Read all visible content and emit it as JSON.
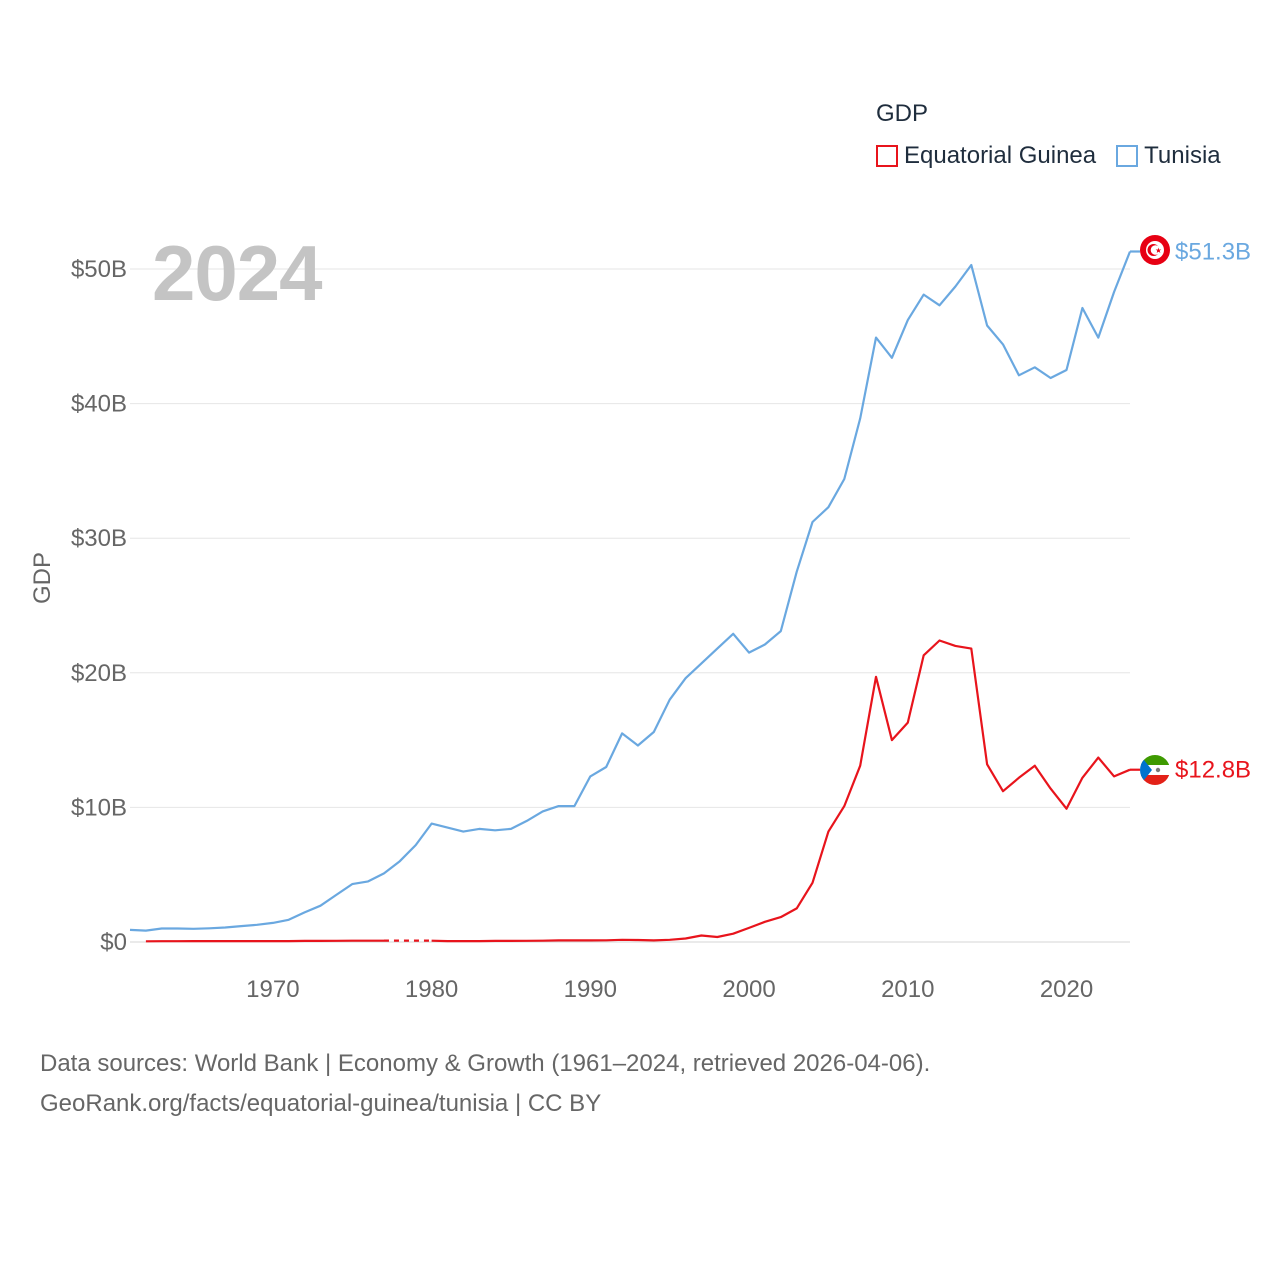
{
  "legend": {
    "title": "GDP",
    "items": [
      {
        "label": "Equatorial Guinea",
        "color": "#e8141c"
      },
      {
        "label": "Tunisia",
        "color": "#6aa8e0"
      }
    ]
  },
  "year_stamp": "2024",
  "source": {
    "line1": "Data sources: World Bank | Economy & Growth (1961–2024, retrieved 2026-04-06).",
    "line2": "GeoRank.org/facts/equatorial-guinea/tunisia | CC BY"
  },
  "chart_data": {
    "type": "line",
    "title": "",
    "xlabel": "",
    "ylabel": "GDP",
    "xlim": [
      1961,
      2024
    ],
    "ylim": [
      0,
      50
    ],
    "x_ticks": [
      {
        "value": 1970,
        "label": "1970"
      },
      {
        "value": 1980,
        "label": "1980"
      },
      {
        "value": 1990,
        "label": "1990"
      },
      {
        "value": 2000,
        "label": "2000"
      },
      {
        "value": 2010,
        "label": "2010"
      },
      {
        "value": 2020,
        "label": "2020"
      }
    ],
    "y_ticks": [
      {
        "value": 0,
        "label": "$0"
      },
      {
        "value": 10,
        "label": "$10B"
      },
      {
        "value": 20,
        "label": "$20B"
      },
      {
        "value": 30,
        "label": "$30B"
      },
      {
        "value": 40,
        "label": "$40B"
      },
      {
        "value": 50,
        "label": "$50B"
      }
    ],
    "series": [
      {
        "name": "Tunisia",
        "color": "#6aa8e0",
        "end_label": "$51.3B",
        "points": [
          [
            1961,
            0.9
          ],
          [
            1962,
            0.85
          ],
          [
            1963,
            1.0
          ],
          [
            1964,
            1.0
          ],
          [
            1965,
            0.98
          ],
          [
            1966,
            1.02
          ],
          [
            1967,
            1.08
          ],
          [
            1968,
            1.18
          ],
          [
            1969,
            1.28
          ],
          [
            1970,
            1.42
          ],
          [
            1971,
            1.65
          ],
          [
            1972,
            2.2
          ],
          [
            1973,
            2.7
          ],
          [
            1974,
            3.5
          ],
          [
            1975,
            4.3
          ],
          [
            1976,
            4.5
          ],
          [
            1977,
            5.1
          ],
          [
            1978,
            6.0
          ],
          [
            1979,
            7.2
          ],
          [
            1980,
            8.8
          ],
          [
            1981,
            8.5
          ],
          [
            1982,
            8.2
          ],
          [
            1983,
            8.4
          ],
          [
            1984,
            8.3
          ],
          [
            1985,
            8.4
          ],
          [
            1986,
            9.0
          ],
          [
            1987,
            9.7
          ],
          [
            1988,
            10.1
          ],
          [
            1989,
            10.1
          ],
          [
            1990,
            12.3
          ],
          [
            1991,
            13.0
          ],
          [
            1992,
            15.5
          ],
          [
            1993,
            14.6
          ],
          [
            1994,
            15.6
          ],
          [
            1995,
            18.0
          ],
          [
            1996,
            19.6
          ],
          [
            1997,
            20.7
          ],
          [
            1998,
            21.8
          ],
          [
            1999,
            22.9
          ],
          [
            2000,
            21.5
          ],
          [
            2001,
            22.1
          ],
          [
            2002,
            23.1
          ],
          [
            2003,
            27.5
          ],
          [
            2004,
            31.2
          ],
          [
            2005,
            32.3
          ],
          [
            2006,
            34.4
          ],
          [
            2007,
            38.9
          ],
          [
            2008,
            44.9
          ],
          [
            2009,
            43.4
          ],
          [
            2010,
            46.2
          ],
          [
            2011,
            48.1
          ],
          [
            2012,
            47.3
          ],
          [
            2013,
            48.7
          ],
          [
            2014,
            50.3
          ],
          [
            2015,
            45.8
          ],
          [
            2016,
            44.4
          ],
          [
            2017,
            42.1
          ],
          [
            2018,
            42.7
          ],
          [
            2019,
            41.9
          ],
          [
            2020,
            42.5
          ],
          [
            2021,
            47.1
          ],
          [
            2022,
            44.9
          ],
          [
            2023,
            48.3
          ],
          [
            2024,
            51.3
          ]
        ]
      },
      {
        "name": "Equatorial Guinea",
        "color": "#e8141c",
        "end_label": "$12.8B",
        "gap": [
          1977,
          1980
        ],
        "points": [
          [
            1962,
            0.05
          ],
          [
            1963,
            0.06
          ],
          [
            1964,
            0.06
          ],
          [
            1965,
            0.07
          ],
          [
            1966,
            0.07
          ],
          [
            1967,
            0.07
          ],
          [
            1968,
            0.07
          ],
          [
            1969,
            0.07
          ],
          [
            1970,
            0.07
          ],
          [
            1971,
            0.07
          ],
          [
            1972,
            0.08
          ],
          [
            1973,
            0.08
          ],
          [
            1974,
            0.09
          ],
          [
            1975,
            0.1
          ],
          [
            1976,
            0.1
          ],
          [
            1977,
            0.1
          ],
          [
            1980,
            0.1
          ],
          [
            1981,
            0.07
          ],
          [
            1982,
            0.07
          ],
          [
            1983,
            0.07
          ],
          [
            1984,
            0.08
          ],
          [
            1985,
            0.08
          ],
          [
            1986,
            0.09
          ],
          [
            1987,
            0.1
          ],
          [
            1988,
            0.12
          ],
          [
            1989,
            0.12
          ],
          [
            1990,
            0.12
          ],
          [
            1991,
            0.13
          ],
          [
            1992,
            0.16
          ],
          [
            1993,
            0.15
          ],
          [
            1994,
            0.12
          ],
          [
            1995,
            0.16
          ],
          [
            1996,
            0.26
          ],
          [
            1997,
            0.48
          ],
          [
            1998,
            0.37
          ],
          [
            1999,
            0.62
          ],
          [
            2000,
            1.05
          ],
          [
            2001,
            1.5
          ],
          [
            2002,
            1.85
          ],
          [
            2003,
            2.5
          ],
          [
            2004,
            4.4
          ],
          [
            2005,
            8.2
          ],
          [
            2006,
            10.1
          ],
          [
            2007,
            13.1
          ],
          [
            2008,
            19.7
          ],
          [
            2009,
            15.0
          ],
          [
            2010,
            16.3
          ],
          [
            2011,
            21.3
          ],
          [
            2012,
            22.4
          ],
          [
            2013,
            22.0
          ],
          [
            2014,
            21.8
          ],
          [
            2015,
            13.2
          ],
          [
            2016,
            11.2
          ],
          [
            2017,
            12.2
          ],
          [
            2018,
            13.1
          ],
          [
            2019,
            11.4
          ],
          [
            2020,
            9.9
          ],
          [
            2021,
            12.2
          ],
          [
            2022,
            13.7
          ],
          [
            2023,
            12.3
          ],
          [
            2024,
            12.8
          ]
        ]
      }
    ]
  }
}
